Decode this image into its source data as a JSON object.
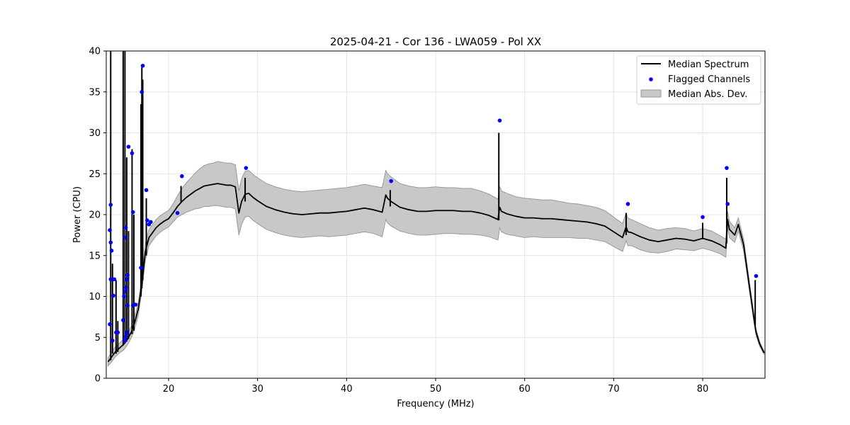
{
  "chart_data": {
    "type": "line",
    "title": "2025-04-21 - Cor 136 - LWA059 - Pol XX",
    "xlabel": "Frequency (MHz)",
    "ylabel": "Power (CPU)",
    "xlim": [
      13,
      87
    ],
    "ylim": [
      0,
      40
    ],
    "xticks": [
      20,
      30,
      40,
      50,
      60,
      70,
      80
    ],
    "yticks": [
      0,
      5,
      10,
      15,
      20,
      25,
      30,
      35,
      40
    ],
    "xtick_labels": [
      "20",
      "30",
      "40",
      "50",
      "60",
      "70",
      "80"
    ],
    "ytick_labels": [
      "0",
      "5",
      "10",
      "15",
      "20",
      "25",
      "30",
      "35",
      "40"
    ],
    "grid": true,
    "legend_position": "top-right",
    "colors": {
      "median": "#000000",
      "flagged": "#0000ff",
      "band_fill": "#c8c8c8",
      "band_edge": "#9a9a9a",
      "grid": "#e4e4e4"
    },
    "legend": [
      {
        "label": "Median Spectrum",
        "kind": "line"
      },
      {
        "label": "Flagged Channels",
        "kind": "marker"
      },
      {
        "label": "Median Abs. Dev.",
        "kind": "band"
      }
    ],
    "series": [
      {
        "name": "Median Spectrum",
        "x": [
          13.2,
          13.6,
          13.8,
          14.0,
          14.3,
          14.6,
          15.0,
          15.4,
          15.8,
          16.2,
          16.6,
          17.0,
          17.4,
          17.8,
          18.2,
          18.6,
          19.0,
          19.5,
          20.0,
          20.5,
          21.0,
          21.5,
          22.0,
          22.5,
          23.0,
          23.5,
          24.0,
          24.5,
          25.0,
          25.5,
          26.0,
          26.5,
          27.0,
          27.5,
          27.9,
          28.2,
          28.6,
          29.0,
          29.5,
          30.0,
          31.0,
          32.0,
          33.0,
          34.0,
          35.0,
          36.0,
          37.0,
          38.0,
          39.0,
          40.0,
          41.0,
          42.0,
          43.0,
          44.0,
          44.4,
          44.6,
          45.0,
          46.0,
          47.0,
          48.0,
          49.0,
          50.0,
          51.0,
          52.0,
          53.0,
          54.0,
          55.0,
          56.0,
          57.0,
          57.2,
          57.4,
          58.0,
          59.0,
          60.0,
          61.0,
          62.0,
          63.0,
          64.0,
          65.0,
          66.0,
          67.0,
          68.0,
          69.0,
          70.0,
          71.0,
          71.4,
          71.6,
          72.0,
          73.0,
          74.0,
          75.0,
          76.0,
          77.0,
          78.0,
          79.0,
          80.0,
          81.0,
          82.0,
          82.6,
          82.8,
          83.0,
          83.6,
          84.0,
          84.6,
          85.2,
          85.8,
          86.0,
          86.4,
          86.9
        ],
        "values": [
          2.0,
          2.6,
          2.9,
          3.2,
          3.5,
          3.8,
          4.2,
          4.8,
          5.6,
          6.8,
          8.5,
          11.5,
          15.5,
          17.2,
          17.8,
          18.4,
          18.8,
          19.2,
          19.5,
          20.2,
          21.0,
          21.6,
          22.1,
          22.5,
          22.9,
          23.2,
          23.5,
          23.6,
          23.7,
          23.8,
          23.7,
          23.6,
          23.6,
          23.4,
          20.2,
          21.6,
          22.5,
          22.6,
          22.1,
          21.7,
          21.0,
          20.6,
          20.3,
          20.1,
          20.0,
          20.1,
          20.2,
          20.2,
          20.3,
          20.4,
          20.6,
          20.8,
          20.6,
          20.3,
          22.4,
          22.0,
          21.6,
          20.9,
          20.6,
          20.4,
          20.4,
          20.5,
          20.5,
          20.5,
          20.4,
          20.4,
          20.2,
          19.9,
          19.4,
          20.9,
          20.4,
          20.1,
          19.8,
          19.6,
          19.6,
          19.5,
          19.5,
          19.4,
          19.3,
          19.2,
          19.1,
          18.9,
          18.6,
          17.9,
          17.2,
          18.5,
          17.9,
          17.8,
          17.3,
          16.9,
          16.7,
          16.9,
          17.1,
          17.0,
          16.8,
          17.1,
          16.8,
          16.3,
          15.9,
          19.4,
          18.2,
          17.5,
          18.8,
          16.3,
          11.6,
          7.0,
          5.6,
          4.2,
          3.1
        ],
        "band_half_width": [
          0.5,
          0.6,
          0.6,
          0.6,
          0.6,
          0.6,
          0.7,
          0.7,
          0.7,
          0.8,
          0.8,
          0.9,
          1.0,
          1.0,
          1.0,
          1.0,
          1.0,
          1.0,
          1.0,
          1.1,
          1.3,
          1.6,
          1.8,
          2.0,
          2.2,
          2.4,
          2.5,
          2.6,
          2.6,
          2.7,
          2.7,
          2.7,
          2.7,
          2.7,
          2.7,
          2.8,
          2.8,
          2.8,
          2.8,
          2.8,
          2.8,
          2.8,
          2.8,
          2.8,
          2.8,
          2.8,
          2.8,
          2.9,
          2.9,
          2.9,
          2.9,
          2.9,
          2.9,
          3.0,
          3.0,
          3.0,
          3.0,
          2.9,
          2.9,
          2.9,
          2.9,
          2.9,
          2.8,
          2.8,
          2.8,
          2.8,
          2.7,
          2.6,
          2.5,
          2.5,
          2.5,
          2.5,
          2.4,
          2.4,
          2.3,
          2.3,
          2.3,
          2.2,
          2.1,
          2.1,
          2.0,
          2.0,
          1.9,
          1.8,
          1.7,
          1.7,
          1.7,
          1.6,
          1.6,
          1.5,
          1.4,
          1.4,
          1.3,
          1.3,
          1.2,
          1.2,
          1.2,
          1.1,
          1.1,
          1.0,
          1.0,
          0.9,
          0.8,
          0.7,
          0.6,
          0.5,
          0.4,
          0.3,
          0.2
        ]
      },
      {
        "name": "Spikes",
        "segments": [
          [
            13.5,
            2.2,
            40
          ],
          [
            13.7,
            3.0,
            14.0
          ],
          [
            14.1,
            3.0,
            12.0
          ],
          [
            14.3,
            3.2,
            7.0
          ],
          [
            14.9,
            4.0,
            40
          ],
          [
            15.1,
            4.3,
            40
          ],
          [
            15.3,
            4.5,
            27.0
          ],
          [
            15.5,
            4.8,
            18.0
          ],
          [
            15.9,
            5.4,
            28.0
          ],
          [
            16.1,
            5.8,
            20.0
          ],
          [
            16.9,
            10.0,
            33.5
          ],
          [
            17.0,
            11.0,
            38.0
          ],
          [
            17.1,
            12.0,
            36.5
          ],
          [
            17.5,
            15.0,
            22.0
          ],
          [
            21.4,
            21.5,
            23.5
          ],
          [
            28.6,
            21.6,
            24.5
          ],
          [
            44.9,
            21.0,
            23.0
          ],
          [
            57.1,
            19.3,
            30.0
          ],
          [
            71.4,
            17.5,
            20.2
          ],
          [
            80.0,
            17.0,
            19.0
          ],
          [
            82.7,
            16.5,
            24.5
          ],
          [
            85.9,
            6.5,
            12.0
          ]
        ]
      },
      {
        "name": "Flagged Channels",
        "points": [
          [
            13.5,
            21.2
          ],
          [
            13.4,
            18.1
          ],
          [
            13.5,
            16.6
          ],
          [
            13.6,
            15.6
          ],
          [
            13.5,
            12.1
          ],
          [
            13.9,
            12.1
          ],
          [
            13.8,
            10.1
          ],
          [
            13.4,
            6.6
          ],
          [
            13.7,
            4.6
          ],
          [
            14.1,
            5.6
          ],
          [
            14.3,
            5.6
          ],
          [
            14.9,
            7.1
          ],
          [
            15.1,
            4.6
          ],
          [
            15.2,
            5.1
          ],
          [
            15.3,
            5.6
          ],
          [
            15.4,
            8.9
          ],
          [
            15.0,
            10.0
          ],
          [
            15.1,
            10.6
          ],
          [
            15.2,
            11.1
          ],
          [
            15.3,
            12.1
          ],
          [
            15.4,
            12.6
          ],
          [
            15.1,
            17.2
          ],
          [
            15.2,
            18.4
          ],
          [
            15.5,
            28.3
          ],
          [
            15.9,
            27.5
          ],
          [
            16.0,
            20.3
          ],
          [
            16.0,
            8.9
          ],
          [
            16.3,
            9.0
          ],
          [
            16.9,
            13.5
          ],
          [
            17.0,
            35.0
          ],
          [
            17.1,
            38.2
          ],
          [
            17.5,
            23.0
          ],
          [
            17.6,
            19.3
          ],
          [
            17.8,
            18.8
          ],
          [
            18.0,
            19.1
          ],
          [
            21.0,
            20.2
          ],
          [
            21.5,
            24.7
          ],
          [
            28.7,
            25.7
          ],
          [
            45.0,
            24.1
          ],
          [
            57.2,
            31.5
          ],
          [
            71.6,
            21.3
          ],
          [
            80.0,
            19.7
          ],
          [
            82.7,
            25.7
          ],
          [
            82.8,
            21.3
          ],
          [
            86.0,
            12.5
          ]
        ]
      }
    ]
  }
}
